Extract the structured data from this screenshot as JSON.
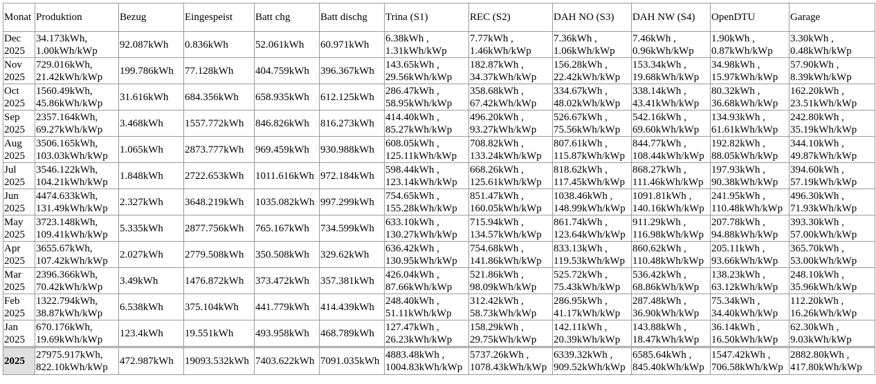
{
  "table": {
    "header": [
      "Monat",
      "Produktion",
      "Bezug",
      "Eingespeist",
      "Batt chg",
      "Batt dischg",
      "Trina (S1)",
      "REC (S2)",
      "DAH NO (S3)",
      "DAH NW (S4)",
      "OpenDTU",
      "Garage"
    ],
    "rows": [
      [
        [
          "Dec",
          "2025"
        ],
        [
          "34.173kWh,",
          "1.00kWh/kWp"
        ],
        "92.087kWh",
        "0.836kWh",
        "52.061kWh",
        "60.971kWh",
        [
          "6.38kWh ,",
          "1.31kWh/kWp"
        ],
        [
          "7.77kWh ,",
          "1.46kWh/kWp"
        ],
        [
          "7.36kWh ,",
          "1.06kWh/kWp"
        ],
        [
          "7.46kWh ,",
          "0.96kWh/kWp"
        ],
        [
          "1.90kWh ,",
          "0.87kWh/kWp"
        ],
        [
          "3.30kWh ,",
          "0.48kWh/kWp"
        ]
      ],
      [
        [
          "Nov",
          "2025"
        ],
        [
          "729.016kWh,",
          "21.42kWh/kWp"
        ],
        "199.786kWh",
        "77.128kWh",
        "404.759kWh",
        "396.367kWh",
        [
          "143.65kWh ,",
          "29.56kWh/kWp"
        ],
        [
          "182.87kWh ,",
          "34.37kWh/kWp"
        ],
        [
          "156.28kWh ,",
          "22.42kWh/kWp"
        ],
        [
          "153.34kWh ,",
          "19.68kWh/kWp"
        ],
        [
          "34.98kWh ,",
          "15.97kWh/kWp"
        ],
        [
          "57.90kWh ,",
          "8.39kWh/kWp"
        ]
      ],
      [
        [
          "Oct",
          "2025"
        ],
        [
          "1560.49kWh,",
          "45.86kWh/kWp"
        ],
        "31.616kWh",
        "684.356kWh",
        "658.935kWh",
        "612.125kWh",
        [
          "286.47kWh ,",
          "58.95kWh/kWp"
        ],
        [
          "358.68kWh ,",
          "67.42kWh/kWp"
        ],
        [
          "334.67kWh ,",
          "48.02kWh/kWp"
        ],
        [
          "338.14kWh ,",
          "43.41kWh/kWp"
        ],
        [
          "80.32kWh ,",
          "36.68kWh/kWp"
        ],
        [
          "162.20kWh ,",
          "23.51kWh/kWp"
        ]
      ],
      [
        [
          "Sep",
          "2025"
        ],
        [
          "2357.164kWh,",
          "69.27kWh/kWp"
        ],
        "3.468kWh",
        "1557.772kWh",
        "846.826kWh",
        "816.273kWh",
        [
          "414.40kWh ,",
          "85.27kWh/kWp"
        ],
        [
          "496.20kWh ,",
          "93.27kWh/kWp"
        ],
        [
          "526.67kWh ,",
          "75.56kWh/kWp"
        ],
        [
          "542.16kWh ,",
          "69.60kWh/kWp"
        ],
        [
          "134.93kWh ,",
          "61.61kWh/kWp"
        ],
        [
          "242.80kWh ,",
          "35.19kWh/kWp"
        ]
      ],
      [
        [
          "Aug",
          "2025"
        ],
        [
          "3506.165kWh,",
          "103.03kWh/kWp"
        ],
        "1.065kWh",
        "2873.777kWh",
        "969.459kWh",
        "930.988kWh",
        [
          "608.05kWh ,",
          "125.11kWh/kWp"
        ],
        [
          "708.82kWh ,",
          "133.24kWh/kWp"
        ],
        [
          "807.61kWh ,",
          "115.87kWh/kWp"
        ],
        [
          "844.77kWh ,",
          "108.44kWh/kWp"
        ],
        [
          "192.82kWh ,",
          "88.05kWh/kWp"
        ],
        [
          "344.10kWh ,",
          "49.87kWh/kWp"
        ]
      ],
      [
        [
          "Jul",
          "2025"
        ],
        [
          "3546.122kWh,",
          "104.21kWh/kWp"
        ],
        "1.848kWh",
        "2722.653kWh",
        "1011.616kWh",
        "972.184kWh",
        [
          "598.44kWh ,",
          "123.14kWh/kWp"
        ],
        [
          "668.26kWh ,",
          "125.61kWh/kWp"
        ],
        [
          "818.62kWh ,",
          "117.45kWh/kWp"
        ],
        [
          "868.27kWh ,",
          "111.46kWh/kWp"
        ],
        [
          "197.93kWh ,",
          "90.38kWh/kWp"
        ],
        [
          "394.60kWh ,",
          "57.19kWh/kWp"
        ]
      ],
      [
        [
          "Jun",
          "2025"
        ],
        [
          "4474.633kWh,",
          "131.49kWh/kWp"
        ],
        "2.327kWh",
        "3648.219kWh",
        "1035.082kWh",
        "997.299kWh",
        [
          "754.65kWh ,",
          "155.28kWh/kWp"
        ],
        [
          "851.47kWh ,",
          "160.05kWh/kWp"
        ],
        [
          "1038.46kWh ,",
          "148.99kWh/kWp"
        ],
        [
          "1091.81kWh ,",
          "140.16kWh/kWp"
        ],
        [
          "241.95kWh ,",
          "110.48kWh/kWp"
        ],
        [
          "496.30kWh ,",
          "71.93kWh/kWp"
        ]
      ],
      [
        [
          "May",
          "2025"
        ],
        [
          "3723.148kWh,",
          "109.41kWh/kWp"
        ],
        "5.335kWh",
        "2877.756kWh",
        "765.167kWh",
        "734.599kWh",
        [
          "633.10kWh ,",
          "130.27kWh/kWp"
        ],
        [
          "715.94kWh ,",
          "134.57kWh/kWp"
        ],
        [
          "861.74kWh ,",
          "123.64kWh/kWp"
        ],
        [
          "911.29kWh ,",
          "116.98kWh/kWp"
        ],
        [
          "207.78kWh ,",
          "94.88kWh/kWp"
        ],
        [
          "393.30kWh ,",
          "57.00kWh/kWp"
        ]
      ],
      [
        [
          "Apr",
          "2025"
        ],
        [
          "3655.67kWh,",
          "107.42kWh/kWp"
        ],
        "2.027kWh",
        "2779.508kWh",
        "350.508kWh",
        "329.62kWh",
        [
          "636.42kWh ,",
          "130.95kWh/kWp"
        ],
        [
          "754.68kWh ,",
          "141.86kWh/kWp"
        ],
        [
          "833.13kWh ,",
          "119.53kWh/kWp"
        ],
        [
          "860.62kWh ,",
          "110.48kWh/kWp"
        ],
        [
          "205.11kWh ,",
          "93.66kWh/kWp"
        ],
        [
          "365.70kWh ,",
          "53.00kWh/kWp"
        ]
      ],
      [
        [
          "Mar",
          "2025"
        ],
        [
          "2396.366kWh,",
          "70.42kWh/kWp"
        ],
        "3.49kWh",
        "1476.872kWh",
        "373.472kWh",
        "357.381kWh",
        [
          "426.04kWh ,",
          "87.66kWh/kWp"
        ],
        [
          "521.86kWh ,",
          "98.09kWh/kWp"
        ],
        [
          "525.72kWh ,",
          "75.43kWh/kWp"
        ],
        [
          "536.42kWh ,",
          "68.86kWh/kWp"
        ],
        [
          "138.23kWh ,",
          "63.12kWh/kWp"
        ],
        [
          "248.10kWh ,",
          "35.96kWh/kWp"
        ]
      ],
      [
        [
          "Feb",
          "2025"
        ],
        [
          "1322.794kWh,",
          "38.87kWh/kWp"
        ],
        "6.538kWh",
        "375.104kWh",
        "441.779kWh",
        "414.439kWh",
        [
          "248.40kWh ,",
          "51.11kWh/kWp"
        ],
        [
          "312.42kWh ,",
          "58.73kWh/kWp"
        ],
        [
          "286.95kWh ,",
          "41.17kWh/kWp"
        ],
        [
          "287.48kWh ,",
          "36.90kWh/kWp"
        ],
        [
          "75.34kWh ,",
          "34.40kWh/kWp"
        ],
        [
          "112.20kWh ,",
          "16.26kWh/kWp"
        ]
      ],
      [
        [
          "Jan",
          "2025"
        ],
        [
          "670.176kWh,",
          "19.69kWh/kWp"
        ],
        "123.4kWh",
        "19.551kWh",
        "493.958kWh",
        "468.789kWh",
        [
          "127.47kWh ,",
          "26.23kWh/kWp"
        ],
        [
          "158.29kWh ,",
          "29.75kWh/kWp"
        ],
        [
          "142.11kWh ,",
          "20.39kWh/kWp"
        ],
        [
          "143.88kWh ,",
          "18.47kWh/kWp"
        ],
        [
          "36.14kWh ,",
          "16.50kWh/kWp"
        ],
        [
          "62.30kWh ,",
          "9.03kWh/kWp"
        ]
      ]
    ],
    "total": [
      "2025",
      [
        "27975.917kWh,",
        "822.10kWh/kWp"
      ],
      "472.987kWh",
      "19093.532kWh",
      "7403.622kWh",
      "7091.035kWh",
      [
        "4883.48kWh ,",
        "1004.83kWh/kWp"
      ],
      [
        "5737.26kWh ,",
        "1078.43kWh/kWp"
      ],
      [
        "6339.32kWh ,",
        "909.52kWh/kWp"
      ],
      [
        "6585.64kWh ,",
        "845.40kWh/kWp"
      ],
      [
        "1547.42kWh ,",
        "706.58kWh/kWp"
      ],
      [
        "2882.80kWh ,",
        "417.80kWh/kWp"
      ]
    ]
  }
}
